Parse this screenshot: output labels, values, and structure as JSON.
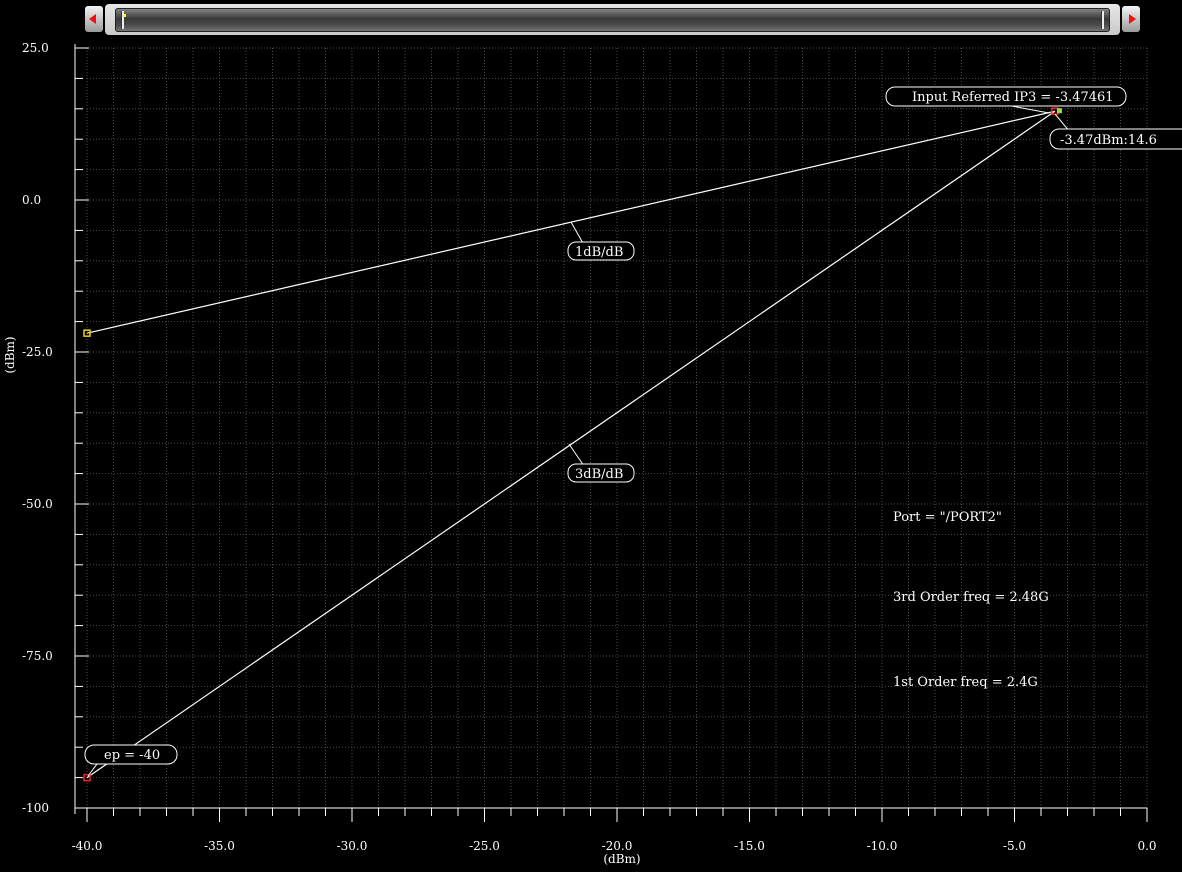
{
  "chart_data": {
    "type": "line",
    "xlabel": "(dBm)",
    "ylabel": "(dBm)",
    "xlim": [
      -40,
      0
    ],
    "ylim": [
      -100,
      25
    ],
    "x_ticks": [
      "-40.0",
      "-35.0",
      "-30.0",
      "-25.0",
      "-20.0",
      "-15.0",
      "-10.0",
      "-5.0",
      "0.0"
    ],
    "y_ticks": [
      "25.0",
      "0.0",
      "-25.0",
      "-50.0",
      "-75.0",
      "-100"
    ],
    "series": [
      {
        "x": [
          -40,
          -3.47461
        ],
        "y": [
          -21.9,
          14.6
        ],
        "color": "#ffffff"
      },
      {
        "x": [
          -40,
          -3.47461
        ],
        "y": [
          -95.0,
          14.6
        ],
        "color": "#ffffff"
      }
    ],
    "markers": [
      {
        "x": -40,
        "y": -21.9,
        "color": "#f0d000"
      },
      {
        "x": -40,
        "y": -95.0,
        "color": "#ff2020"
      },
      {
        "x": -3.47461,
        "y": 14.6,
        "color": "#ff2020"
      }
    ],
    "annotations": {
      "iip3": "Input Referred IP3 = -3.47461",
      "point": "-3.47dBm:14.6",
      "slope1": "1dB/dB",
      "slope3": "3dB/dB",
      "ep": "ep = -40",
      "port": "Port = \"/PORT2\"",
      "freq3": "3rd Order freq = 2.48G",
      "freq1": "1st Order freq = 2.4G"
    },
    "grid": true
  }
}
